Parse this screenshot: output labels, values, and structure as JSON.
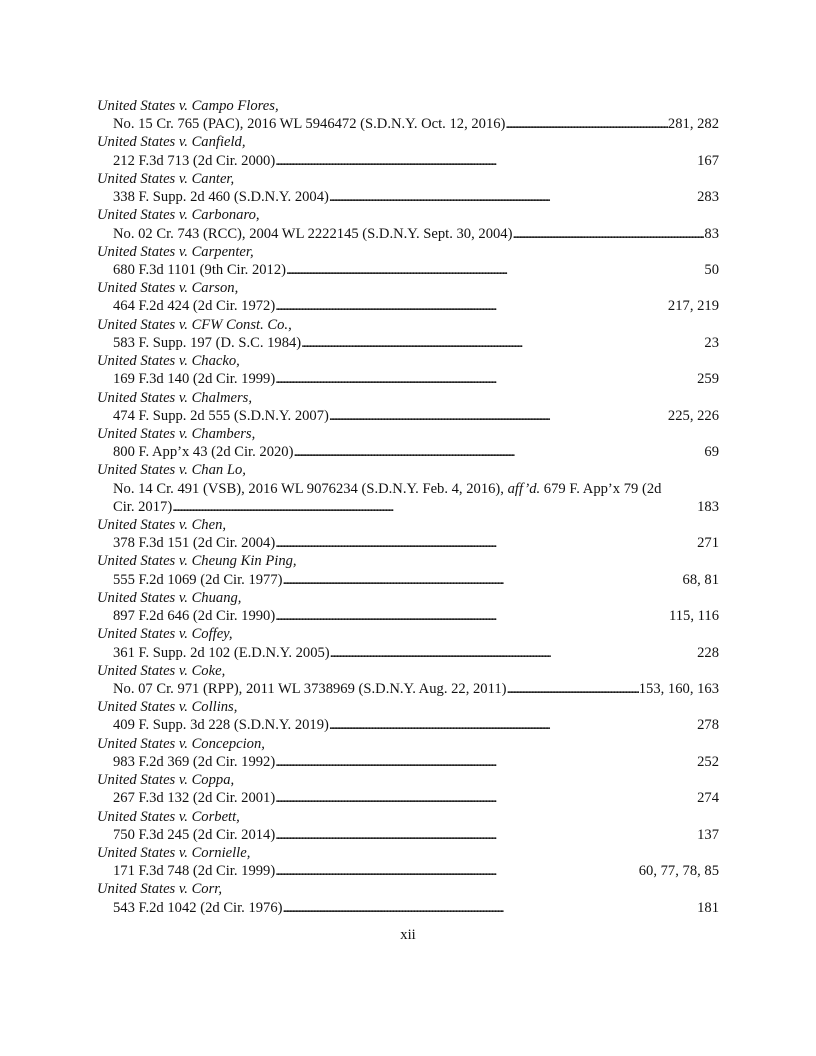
{
  "entries": [
    {
      "name": "United States v. Campo Flores",
      "cite": "No. 15 Cr. 765 (PAC), 2016 WL 5946472 (S.D.N.Y. Oct. 12, 2016)",
      "pages": "281, 282"
    },
    {
      "name": "United States v. Canfield",
      "cite": "212 F.3d 713 (2d Cir. 2000)",
      "pages": "167"
    },
    {
      "name": "United States v. Canter",
      "cite": "338 F. Supp. 2d 460 (S.D.N.Y. 2004)",
      "pages": "283"
    },
    {
      "name": "United States v. Carbonaro",
      "cite": "No. 02 Cr. 743 (RCC), 2004 WL 2222145 (S.D.N.Y. Sept. 30, 2004)",
      "pages": "83"
    },
    {
      "name": "United States v. Carpenter",
      "cite": "680 F.3d 1101 (9th Cir. 2012)",
      "pages": "50"
    },
    {
      "name": "United States v. Carson",
      "cite": "464 F.2d 424 (2d Cir. 1972)",
      "pages": "217, 219"
    },
    {
      "name": "United States v. CFW Const. Co.",
      "cite": "583 F. Supp. 197 (D. S.C. 1984)",
      "pages": "23"
    },
    {
      "name": "United States v. Chacko",
      "cite": "169 F.3d 140 (2d Cir. 1999)",
      "pages": "259"
    },
    {
      "name": "United States v. Chalmers",
      "cite": "474 F. Supp. 2d 555 (S.D.N.Y. 2007)",
      "pages": "225, 226"
    },
    {
      "name": "United States v. Chambers",
      "cite": "800 F. App’x 43 (2d Cir. 2020)",
      "pages": "69"
    },
    {
      "name": "United States v. Chan Lo",
      "cite_pre": "No. 14 Cr. 491 (VSB), 2016 WL 9076234 (S.D.N.Y. Feb. 4, 2016), ",
      "cite_italic": "aff’d.",
      "cite_post": " 679 F. App’x 79 (2d",
      "cite": "Cir. 2017)",
      "pages": "183"
    },
    {
      "name": "United States v. Chen",
      "cite": "378 F.3d 151 (2d Cir. 2004)",
      "pages": "271"
    },
    {
      "name": "United States v. Cheung Kin Ping",
      "cite": "555 F.2d 1069 (2d Cir. 1977)",
      "pages": "68, 81"
    },
    {
      "name": "United States v. Chuang",
      "cite": "897 F.2d 646 (2d Cir. 1990)",
      "pages": "115, 116"
    },
    {
      "name": "United States v. Coffey",
      "cite": "361 F. Supp. 2d 102 (E.D.N.Y. 2005)",
      "pages": "228"
    },
    {
      "name": "United States v. Coke",
      "cite": "No. 07 Cr. 971 (RPP), 2011 WL 3738969 (S.D.N.Y. Aug. 22, 2011)",
      "pages": "153, 160, 163"
    },
    {
      "name": "United States v. Collins",
      "cite": "409 F. Supp. 3d 228 (S.D.N.Y. 2019)",
      "pages": "278"
    },
    {
      "name": "United States v. Concepcion",
      "cite": "983 F.2d 369 (2d Cir. 1992)",
      "pages": "252"
    },
    {
      "name": "United States v. Coppa",
      "cite": "267 F.3d 132 (2d Cir. 2001)",
      "pages": "274"
    },
    {
      "name": "United States v. Corbett",
      "cite": "750 F.3d 245 (2d Cir. 2014)",
      "pages": "137"
    },
    {
      "name": "United States v. Cornielle",
      "cite": "171 F.3d 748 (2d Cir. 1999)",
      "pages": "60, 77, 78, 85"
    },
    {
      "name": "United States v. Corr",
      "cite": "543 F.2d 1042 (2d Cir. 1976)",
      "pages": "181"
    }
  ],
  "page_number": "xii"
}
